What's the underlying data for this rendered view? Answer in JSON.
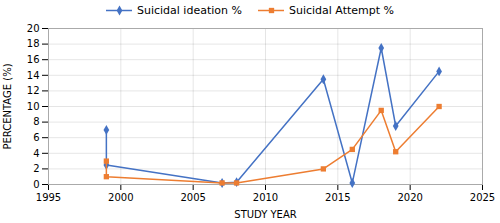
{
  "chart_data": {
    "type": "line",
    "xlabel": "STUDY YEAR",
    "ylabel": "PERCENTAGE (%)",
    "x": [
      1999,
      1999,
      2007,
      2008,
      2014,
      2016,
      2018,
      2019,
      2022
    ],
    "series": [
      {
        "name": "Suicidal ideation %",
        "color": "#4472C4",
        "marker": "diamond",
        "values": [
          7.0,
          2.5,
          0.2,
          0.3,
          13.5,
          0.2,
          17.5,
          7.5,
          14.5
        ]
      },
      {
        "name": "Suicidal Attempt %",
        "color": "#ED7D31",
        "marker": "square",
        "values": [
          3.0,
          1.0,
          0.2,
          0.2,
          2.0,
          4.5,
          9.5,
          4.2,
          10.0
        ]
      }
    ],
    "xlim": [
      1995,
      2025
    ],
    "ylim": [
      0,
      20
    ],
    "xticks": [
      1995,
      2000,
      2005,
      2010,
      2015,
      2020,
      2025
    ],
    "yticks": [
      0,
      2,
      4,
      6,
      8,
      10,
      12,
      14,
      16,
      18,
      20
    ],
    "grid": true,
    "legend": "top"
  }
}
